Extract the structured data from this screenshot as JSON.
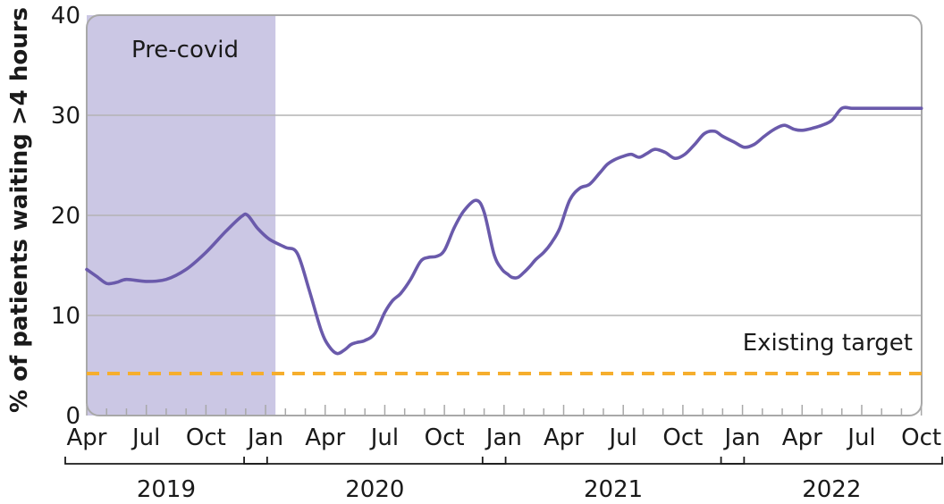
{
  "chart_data": {
    "type": "line",
    "title": "",
    "xlabel": "",
    "ylabel": "% of patients waiting >4 hours",
    "ylim": [
      0,
      40
    ],
    "yticks": [
      0,
      10,
      20,
      30,
      40
    ],
    "grid": true,
    "x_month_range": [
      "Apr 2019",
      "Oct 2022"
    ],
    "x_tick_labels": [
      {
        "label": "Apr",
        "month_index": 0
      },
      {
        "label": "Jul",
        "month_index": 3
      },
      {
        "label": "Oct",
        "month_index": 6
      },
      {
        "label": "Jan",
        "month_index": 9
      },
      {
        "label": "Apr",
        "month_index": 12
      },
      {
        "label": "Jul",
        "month_index": 15
      },
      {
        "label": "Oct",
        "month_index": 18
      },
      {
        "label": "Jan",
        "month_index": 21
      },
      {
        "label": "Apr",
        "month_index": 24
      },
      {
        "label": "Jul",
        "month_index": 27
      },
      {
        "label": "Oct",
        "month_index": 30
      },
      {
        "label": "Jan",
        "month_index": 33
      },
      {
        "label": "Apr",
        "month_index": 36
      },
      {
        "label": "Jul",
        "month_index": 39
      },
      {
        "label": "Oct",
        "month_index": 42
      }
    ],
    "year_groups": [
      {
        "label": "2019",
        "start_month": 0,
        "end_month": 8
      },
      {
        "label": "2020",
        "start_month": 9,
        "end_month": 20
      },
      {
        "label": "2021",
        "start_month": 21,
        "end_month": 32
      },
      {
        "label": "2022",
        "start_month": 33,
        "end_month": 42
      }
    ],
    "shaded_region": {
      "label": "Pre-covid",
      "start_month": 0,
      "end_month": 9.5,
      "color": "#cbc7e4"
    },
    "target": {
      "label": "Existing target",
      "value": 4.2,
      "color": "#f6ae2d"
    },
    "series": [
      {
        "name": "% of patients waiting >4 hours",
        "color": "#6a5aab",
        "x": [
          0,
          0.5,
          1,
          1.5,
          2,
          3,
          4,
          5,
          6,
          7,
          7.8,
          8.1,
          8.6,
          9.2,
          10,
          10.6,
          11.2,
          11.8,
          12.2,
          12.6,
          13,
          13.3,
          13.6,
          14,
          14.5,
          15,
          15.4,
          15.8,
          16.3,
          16.8,
          17.2,
          17.6,
          18,
          18.5,
          19,
          19.6,
          20,
          20.5,
          20.9,
          21.2,
          21.4,
          21.7,
          22,
          22.3,
          22.6,
          23,
          23.4,
          23.8,
          24.3,
          24.8,
          25.3,
          25.8,
          26.2,
          26.6,
          27,
          27.4,
          27.8,
          28.2,
          28.6,
          29.1,
          29.6,
          30.1,
          30.6,
          31.1,
          31.6,
          32,
          32.6,
          33.1,
          33.6,
          34.1,
          34.6,
          35.1,
          35.6,
          36,
          36.5,
          37,
          37.5,
          38,
          38.5,
          39,
          39.5,
          40,
          40.5,
          41,
          41.5,
          42
        ],
        "values": [
          14.6,
          13.9,
          13.2,
          13.3,
          13.6,
          13.4,
          13.6,
          14.6,
          16.3,
          18.4,
          19.9,
          20,
          18.7,
          17.6,
          16.8,
          16.2,
          12.5,
          8.5,
          6.9,
          6.2,
          6.6,
          7.1,
          7.3,
          7.5,
          8.2,
          10.3,
          11.5,
          12.2,
          13.6,
          15.4,
          15.8,
          15.9,
          16.5,
          18.8,
          20.5,
          21.5,
          20.3,
          16.1,
          14.6,
          14.1,
          13.8,
          13.8,
          14.3,
          14.9,
          15.6,
          16.3,
          17.3,
          18.7,
          21.5,
          22.7,
          23.1,
          24.2,
          25.1,
          25.6,
          25.9,
          26.1,
          25.8,
          26.2,
          26.6,
          26.3,
          25.7,
          26.1,
          27.1,
          28.2,
          28.4,
          27.9,
          27.3,
          26.8,
          27.1,
          27.9,
          28.6,
          29,
          28.6,
          28.5,
          28.7,
          29,
          29.5,
          30.7,
          30.7,
          30.7,
          30.7,
          30.7,
          30.7,
          30.7,
          30.7,
          30.7
        ]
      }
    ]
  }
}
